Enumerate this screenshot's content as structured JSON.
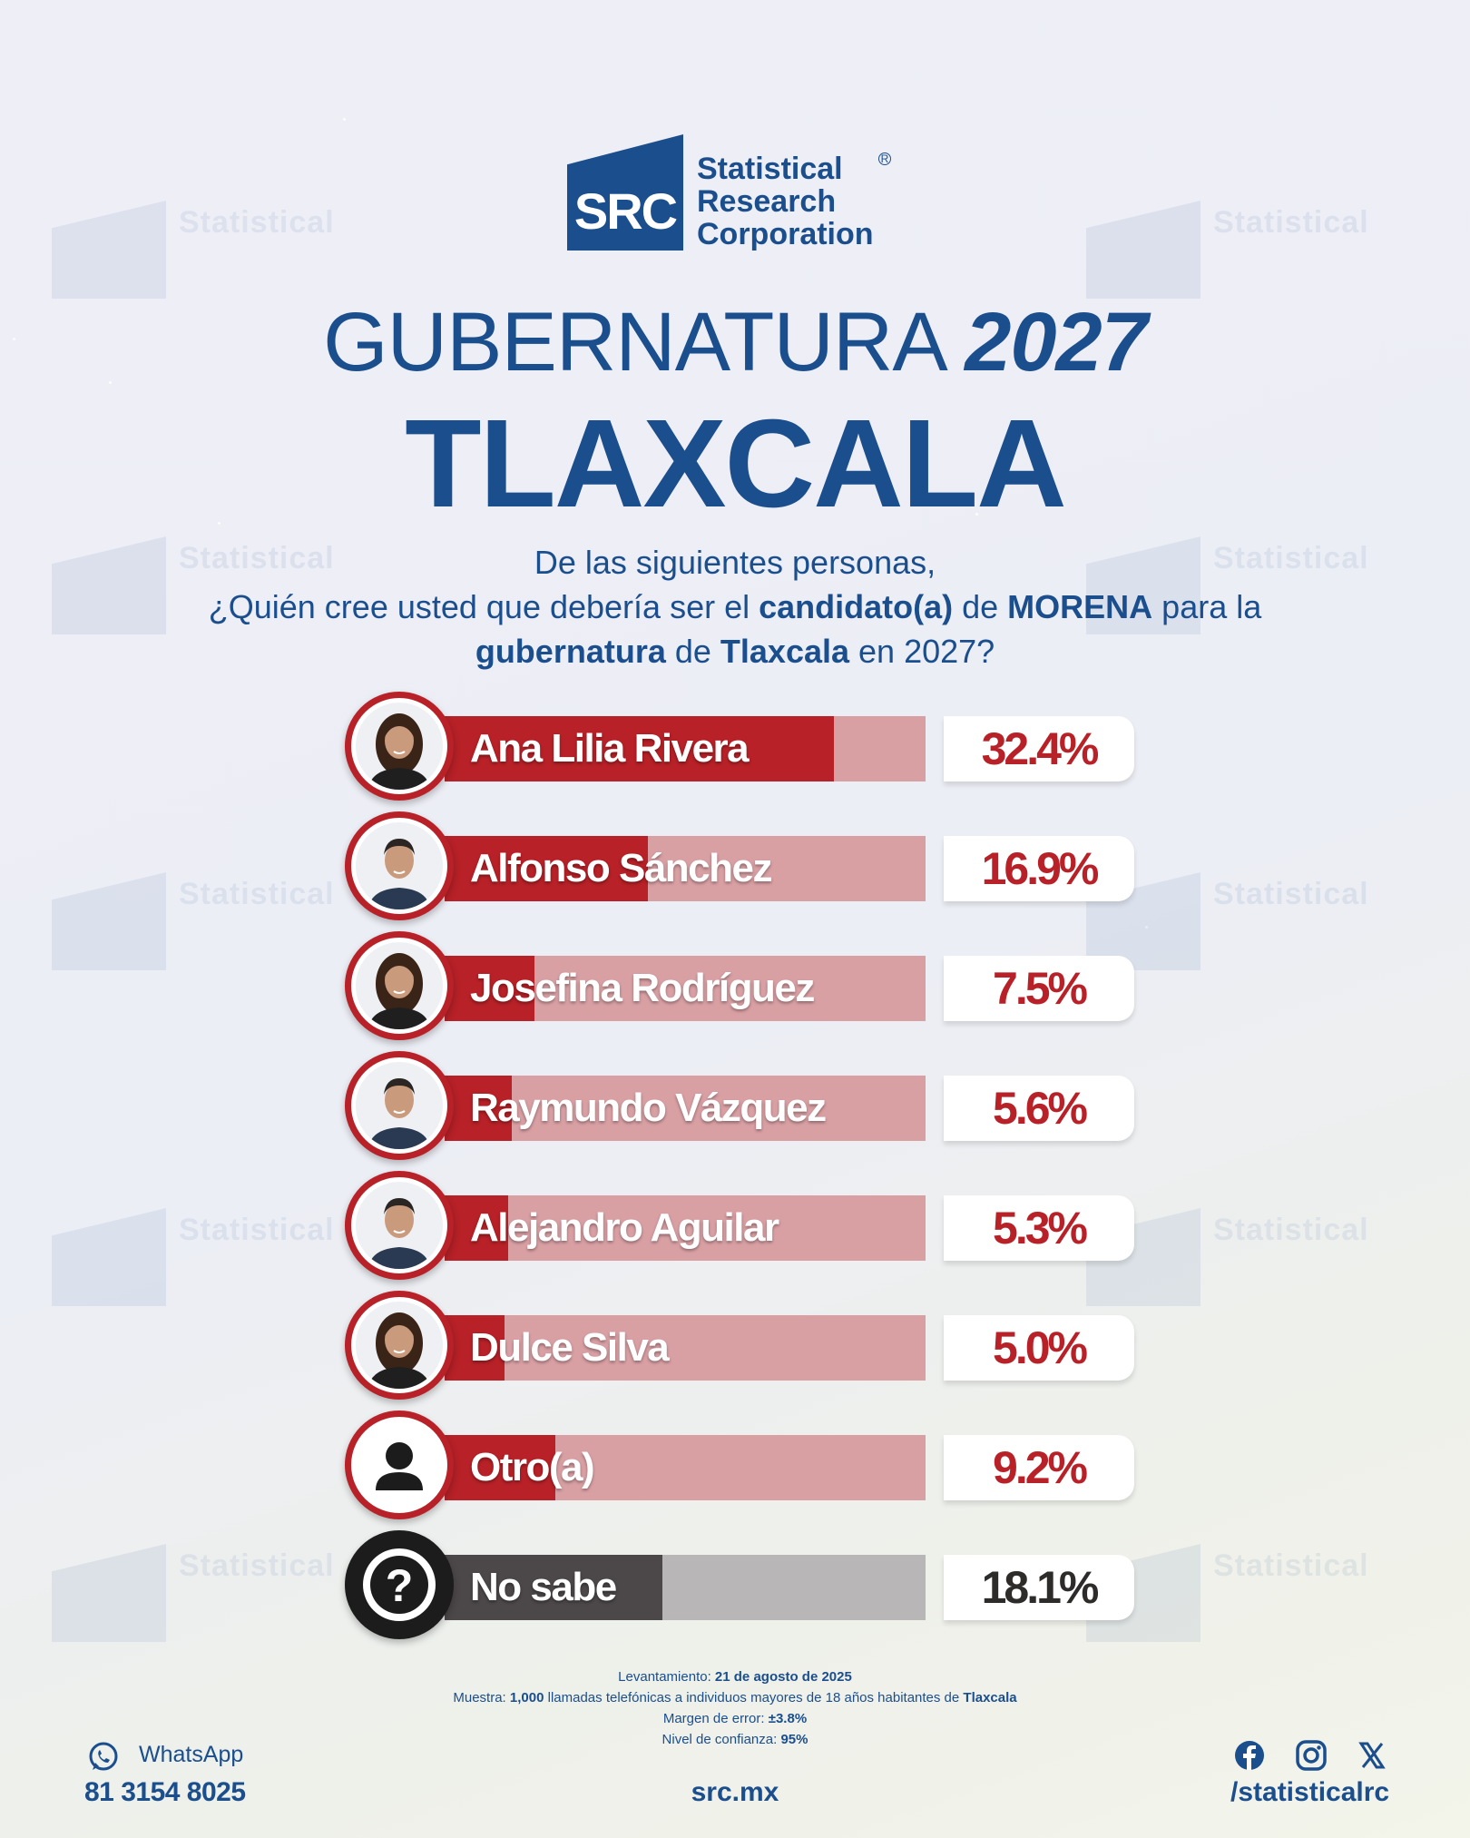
{
  "brand": {
    "logo_text": "SRC",
    "name_line1": "Statistical",
    "name_line2": "Research",
    "name_line3": "Corporation",
    "reg_mark": "R",
    "color": "#1b4e8d"
  },
  "header": {
    "title_light": "GUBERNATURA",
    "title_year": "2027",
    "state": "TLAXCALA"
  },
  "question": {
    "line1": "De las siguientes personas,",
    "line2_a": "¿Quién cree usted que debería ser el ",
    "line2_b": "candidato(a)",
    "line2_c": " de ",
    "line2_d": "MORENA",
    "line2_e": " para la",
    "line3_a": "gubernatura",
    "line3_b": " de ",
    "line3_c": "Tlaxcala",
    "line3_d": " en 2027?"
  },
  "chart_data": {
    "type": "bar",
    "orientation": "horizontal",
    "categories": [
      "Ana Lilia Rivera",
      "Alfonso Sánchez",
      "Josefina Rodríguez",
      "Raymundo Vázquez",
      "Alejandro Aguilar",
      "Dulce Silva",
      "Otro(a)",
      "No sabe"
    ],
    "values": [
      32.4,
      16.9,
      7.5,
      5.6,
      5.3,
      5.0,
      9.2,
      18.1
    ],
    "value_labels": [
      "32.4%",
      "16.9%",
      "7.5%",
      "5.6%",
      "5.3%",
      "5.0%",
      "9.2%",
      "18.1%"
    ],
    "unit": "%",
    "xlim": [
      0,
      40
    ],
    "colors": {
      "bar": "#b72127",
      "track": "#d9a0a4",
      "no_sabe_bar": "#4c4748",
      "no_sabe_track": "#b8b6b6"
    }
  },
  "avatars": [
    "woman-portrait",
    "man-portrait",
    "woman-portrait",
    "man-portrait",
    "man-portrait",
    "woman-portrait",
    "person-icon",
    "question-icon"
  ],
  "methodology": {
    "date_label": "Levantamiento: ",
    "date_value": "21 de agosto de 2025",
    "sample_label": "Muestra: ",
    "sample_value": "1,000",
    "sample_text": " llamadas telefónicas a individuos mayores de 18 años habitantes de ",
    "sample_place": "Tlaxcala",
    "margin_label": "Margen de error: ",
    "margin_value": "±3.8%",
    "confidence_label": "Nivel de confianza: ",
    "confidence_value": "95%"
  },
  "footer": {
    "whatsapp_label": "WhatsApp",
    "phone": "81 3154 8025",
    "website": "src.mx",
    "handle": "/statisticalrc",
    "social_icons": [
      "facebook-icon",
      "instagram-icon",
      "x-icon"
    ]
  }
}
